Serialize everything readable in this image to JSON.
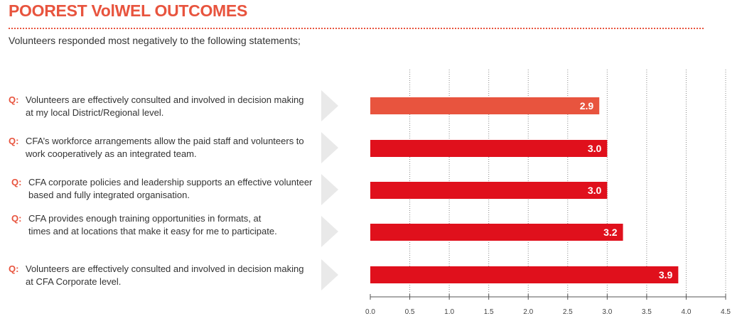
{
  "title": "POOREST VolWEL OUTCOMES",
  "subtitle": "Volunteers responded most negatively to the following statements;",
  "question_prefix": "Q:",
  "questions": [
    "Volunteers are effectively consulted and involved in decision making at my local District/Regional level.",
    "CFA’s workforce arrangements allow the paid staff and volunteers to work cooperatively as an integrated team.",
    "CFA corporate policies and leadership supports an effective volunteer based and fully integrated organisation.",
    "CFA provides enough training opportunities in formats, at times and at locations that make it easy for me to participate.",
    "Volunteers are effectively consulted and involved in decision making at CFA Corporate level."
  ],
  "colors": {
    "accent": "#e8543e",
    "bar_highlight": "#e8543e",
    "bar_default": "#e0101c",
    "grid": "#888888",
    "arrow": "#e9e9e9"
  },
  "chart_data": {
    "type": "bar",
    "orientation": "horizontal",
    "categories": [
      "Volunteers are effectively consulted and involved in decision making at my local District/Regional level.",
      "CFA’s workforce arrangements allow the paid staff and volunteers to work cooperatively as an integrated team.",
      "CFA corporate policies and leadership supports an effective volunteer based and fully integrated organisation.",
      "CFA provides enough training opportunities in formats, at times and at locations that make it easy for me to participate.",
      "Volunteers are effectively consulted and involved in decision making at CFA Corporate level."
    ],
    "values": [
      2.9,
      3.0,
      3.0,
      3.2,
      3.9
    ],
    "value_labels": [
      "2.9",
      "3.0",
      "3.0",
      "3.2",
      "3.9"
    ],
    "xlim": [
      0,
      4.5
    ],
    "ticks": [
      0.0,
      0.5,
      1.0,
      1.5,
      2.0,
      2.5,
      3.0,
      3.5,
      4.0,
      4.5
    ],
    "tick_labels": [
      "0.0",
      "0.5",
      "1.0",
      "1.5",
      "2.0",
      "2.5",
      "3.0",
      "3.5",
      "4.0",
      "4.5"
    ],
    "grid": true,
    "highlight_index": 0
  }
}
